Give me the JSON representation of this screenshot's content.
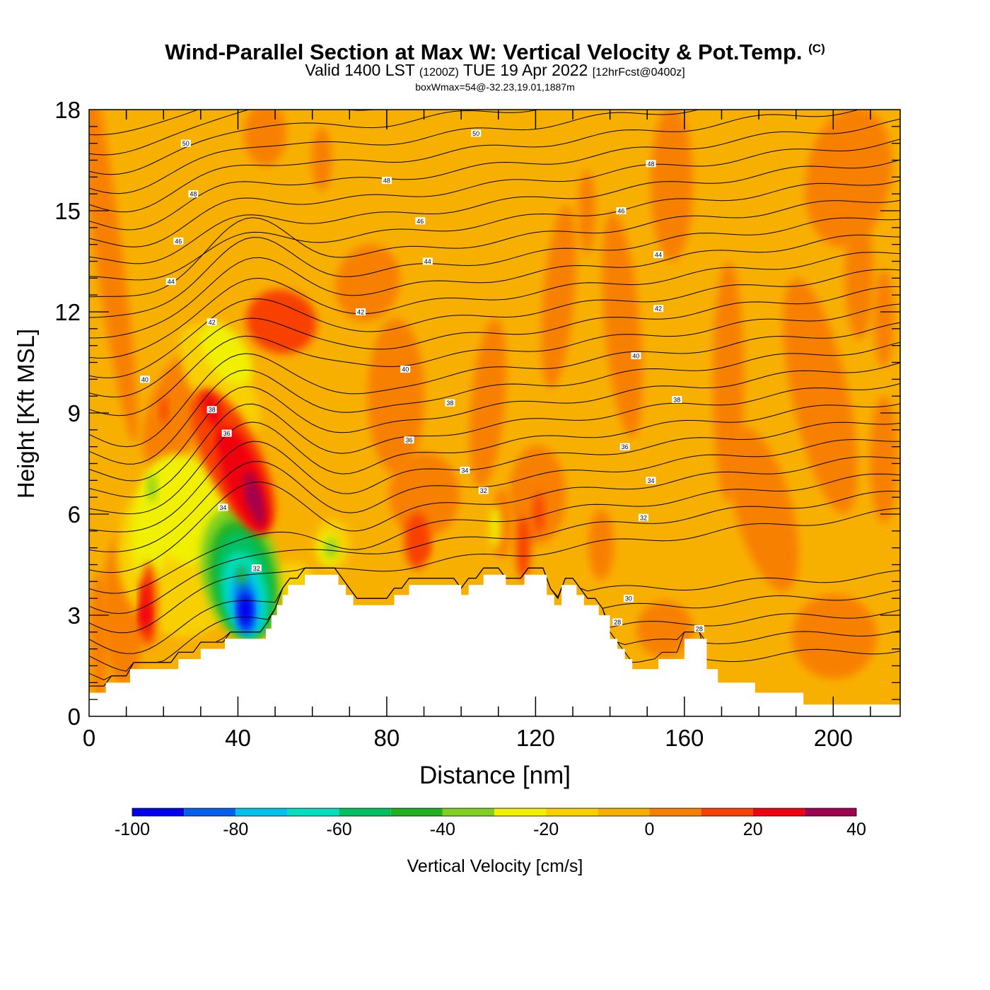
{
  "chart_data": {
    "type": "heatmap",
    "title": "Wind-Parallel Section at Max W: Vertical Velocity & Pot.Temp.",
    "title_mark": "(C)",
    "subtitle_main": "Valid 1400 LST",
    "subtitle_utc": "(1200Z)",
    "subtitle_date": "TUE 19 Apr 2022",
    "subtitle_fcst": "[12hrFcst@0400z]",
    "box_info": "boxWmax=54@-32.23,19.01,1887m",
    "xlabel": "Distance [nm]",
    "ylabel": "Height [Kft MSL]",
    "xlim": [
      0,
      218
    ],
    "ylim": [
      0,
      18
    ],
    "x_ticks": [
      "0",
      "40",
      "80",
      "120",
      "160",
      "200"
    ],
    "y_ticks": [
      "0",
      "3",
      "6",
      "9",
      "12",
      "15",
      "18"
    ],
    "colorbar": {
      "label": "Vertical Velocity [cm/s]",
      "ticks": [
        "-100",
        "-80",
        "-60",
        "-40",
        "-20",
        "0",
        "20",
        "40"
      ],
      "bounds": [
        -100,
        -90,
        -80,
        -70,
        -60,
        -50,
        -40,
        -30,
        -20,
        -10,
        0,
        10,
        20,
        30,
        40
      ],
      "colors": [
        "#0000f0",
        "#0060f0",
        "#00c0f0",
        "#00e0c0",
        "#00c060",
        "#20b020",
        "#80d020",
        "#f0f000",
        "#f8d000",
        "#f8b000",
        "#f88000",
        "#f84000",
        "#f00010",
        "#a00050"
      ]
    },
    "background_value_color": "#f8b000",
    "terrain_kft": [
      [
        0,
        0.7
      ],
      [
        4.5,
        0.7
      ],
      [
        4.5,
        1.0
      ],
      [
        11,
        1.0
      ],
      [
        11,
        1.4
      ],
      [
        24,
        1.4
      ],
      [
        24,
        1.7
      ],
      [
        30,
        1.7
      ],
      [
        30,
        2.0
      ],
      [
        36.5,
        2.0
      ],
      [
        36.5,
        2.3
      ],
      [
        47.5,
        2.3
      ],
      [
        47.5,
        2.6
      ],
      [
        49,
        2.6
      ],
      [
        49,
        3.0
      ],
      [
        50.5,
        3.0
      ],
      [
        50.5,
        3.3
      ],
      [
        52,
        3.3
      ],
      [
        52,
        3.6
      ],
      [
        53.5,
        3.6
      ],
      [
        53.5,
        3.9
      ],
      [
        58,
        3.9
      ],
      [
        58,
        4.2
      ],
      [
        67,
        4.2
      ],
      [
        67,
        3.9
      ],
      [
        69,
        3.9
      ],
      [
        69,
        3.6
      ],
      [
        71,
        3.6
      ],
      [
        71,
        3.3
      ],
      [
        82,
        3.3
      ],
      [
        82,
        3.6
      ],
      [
        86,
        3.6
      ],
      [
        86,
        3.9
      ],
      [
        100,
        3.9
      ],
      [
        100,
        3.6
      ],
      [
        102,
        3.6
      ],
      [
        102,
        3.9
      ],
      [
        106,
        3.9
      ],
      [
        106,
        4.2
      ],
      [
        112,
        4.2
      ],
      [
        112,
        3.9
      ],
      [
        117,
        3.9
      ],
      [
        117,
        4.2
      ],
      [
        123,
        4.2
      ],
      [
        123,
        3.6
      ],
      [
        125,
        3.6
      ],
      [
        125,
        3.3
      ],
      [
        127,
        3.3
      ],
      [
        127,
        3.9
      ],
      [
        131,
        3.9
      ],
      [
        131,
        3.6
      ],
      [
        133,
        3.6
      ],
      [
        133,
        3.3
      ],
      [
        137,
        3.3
      ],
      [
        137,
        3.0
      ],
      [
        140,
        3.0
      ],
      [
        140,
        2.3
      ],
      [
        142,
        2.3
      ],
      [
        142,
        2.0
      ],
      [
        144,
        2.0
      ],
      [
        144,
        1.7
      ],
      [
        146,
        1.7
      ],
      [
        146,
        1.4
      ],
      [
        153,
        1.4
      ],
      [
        153,
        1.7
      ],
      [
        160,
        1.7
      ],
      [
        160,
        2.3
      ],
      [
        166,
        2.3
      ],
      [
        166,
        1.4
      ],
      [
        169,
        1.4
      ],
      [
        169,
        1.0
      ],
      [
        179,
        1.0
      ],
      [
        179,
        0.7
      ],
      [
        192,
        0.7
      ],
      [
        192,
        0.35
      ],
      [
        218,
        0.35
      ]
    ],
    "vertical_velocity_features": [
      {
        "name": "downdraft-core",
        "x": 42,
        "y": 3.2,
        "value": -95
      },
      {
        "name": "downdraft-ring",
        "x": 41,
        "y": 4.2,
        "value": -50
      },
      {
        "name": "updraft-core",
        "x": 44,
        "y": 6.5,
        "value": 40
      },
      {
        "name": "updraft-band",
        "x": 36,
        "y": 8.2,
        "value": 25
      },
      {
        "name": "upper-updraft",
        "x": 56,
        "y": 11.5,
        "value": 15
      },
      {
        "name": "low-updraft",
        "x": 15,
        "y": 3.0,
        "value": 20
      },
      {
        "name": "lee-updraft",
        "x": 90,
        "y": 5.0,
        "value": 12
      }
    ],
    "theta_labels": [
      {
        "x": 26,
        "y": 17.0,
        "text": "50"
      },
      {
        "x": 104,
        "y": 17.3,
        "text": "50"
      },
      {
        "x": 28,
        "y": 15.5,
        "text": "48"
      },
      {
        "x": 80,
        "y": 15.9,
        "text": "48"
      },
      {
        "x": 151,
        "y": 16.4,
        "text": "48"
      },
      {
        "x": 24,
        "y": 14.1,
        "text": "46"
      },
      {
        "x": 89,
        "y": 14.7,
        "text": "46"
      },
      {
        "x": 143,
        "y": 15.0,
        "text": "46"
      },
      {
        "x": 22,
        "y": 12.9,
        "text": "44"
      },
      {
        "x": 91,
        "y": 13.5,
        "text": "44"
      },
      {
        "x": 153,
        "y": 13.7,
        "text": "44"
      },
      {
        "x": 33,
        "y": 11.7,
        "text": "42"
      },
      {
        "x": 73,
        "y": 12.0,
        "text": "42"
      },
      {
        "x": 153,
        "y": 12.1,
        "text": "42"
      },
      {
        "x": 15,
        "y": 10.0,
        "text": "40"
      },
      {
        "x": 85,
        "y": 10.3,
        "text": "40"
      },
      {
        "x": 147,
        "y": 10.7,
        "text": "40"
      },
      {
        "x": 33,
        "y": 9.1,
        "text": "38"
      },
      {
        "x": 97,
        "y": 9.3,
        "text": "38"
      },
      {
        "x": 158,
        "y": 9.4,
        "text": "38"
      },
      {
        "x": 37,
        "y": 8.4,
        "text": "36"
      },
      {
        "x": 86,
        "y": 8.2,
        "text": "36"
      },
      {
        "x": 144,
        "y": 8.0,
        "text": "36"
      },
      {
        "x": 101,
        "y": 7.3,
        "text": "34"
      },
      {
        "x": 151,
        "y": 7.0,
        "text": "34"
      },
      {
        "x": 36,
        "y": 6.2,
        "text": "34"
      },
      {
        "x": 106,
        "y": 6.7,
        "text": "32"
      },
      {
        "x": 149,
        "y": 5.9,
        "text": "32"
      },
      {
        "x": 45,
        "y": 4.4,
        "text": "32"
      },
      {
        "x": 145,
        "y": 3.5,
        "text": "30"
      },
      {
        "x": 142,
        "y": 2.8,
        "text": "28"
      },
      {
        "x": 164,
        "y": 2.6,
        "text": "28"
      }
    ]
  }
}
